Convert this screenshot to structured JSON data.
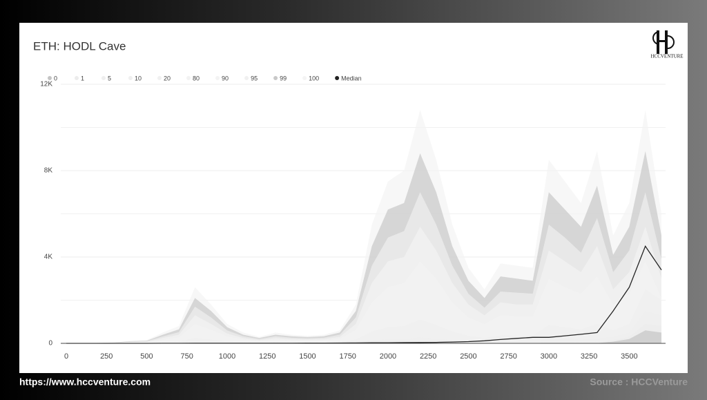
{
  "logo_text": "HCCVENTURE",
  "footer": {
    "url": "https://www.hccventure.com",
    "source": "Source : HCCVenture"
  },
  "chart_data": {
    "type": "area",
    "title": "ETH: HODL Cave",
    "x": [
      0,
      100,
      200,
      300,
      400,
      500,
      600,
      700,
      800,
      900,
      1000,
      1100,
      1200,
      1300,
      1400,
      1500,
      1600,
      1700,
      1800,
      1900,
      2000,
      2100,
      2200,
      2300,
      2400,
      2500,
      2600,
      2700,
      2800,
      2900,
      3000,
      3100,
      3200,
      3300,
      3400,
      3500,
      3600,
      3700
    ],
    "xlim": [
      0,
      3700
    ],
    "xticks": [
      0,
      250,
      500,
      750,
      1000,
      1250,
      1500,
      1750,
      2000,
      2250,
      2500,
      2750,
      3000,
      3250,
      3500
    ],
    "ylim": [
      0,
      12000
    ],
    "yticks": [
      {
        "value": 0,
        "label": "0"
      },
      {
        "value": 4000,
        "label": "4K"
      },
      {
        "value": 8000,
        "label": "8K"
      },
      {
        "value": 12000,
        "label": "12K"
      }
    ],
    "minor_yticks": [
      2000,
      6000,
      10000
    ],
    "grid": true,
    "legend": "top-left",
    "series": [
      {
        "name": "0",
        "color": "#c4c4c4",
        "values": [
          0,
          0,
          0,
          0,
          0,
          0,
          1,
          1,
          3,
          2,
          1,
          1,
          0,
          1,
          0,
          0,
          0,
          1,
          2,
          5,
          8,
          8,
          10,
          8,
          5,
          3,
          3,
          4,
          4,
          4,
          8,
          7,
          6,
          10,
          80,
          200,
          600,
          500
        ]
      },
      {
        "name": "1",
        "color": "#ececec",
        "values": [
          0,
          0,
          0,
          0,
          1,
          1,
          3,
          5,
          15,
          10,
          5,
          3,
          2,
          3,
          2,
          2,
          2,
          3,
          10,
          30,
          40,
          40,
          60,
          45,
          30,
          20,
          15,
          20,
          20,
          20,
          45,
          40,
          35,
          50,
          150,
          300,
          900,
          800
        ]
      },
      {
        "name": "5",
        "color": "#eeeeee",
        "values": [
          0,
          0,
          0,
          1,
          3,
          4,
          12,
          20,
          60,
          45,
          22,
          12,
          8,
          12,
          10,
          9,
          10,
          15,
          45,
          140,
          190,
          200,
          280,
          220,
          140,
          90,
          70,
          100,
          90,
          90,
          220,
          190,
          170,
          230,
          300,
          500,
          1500,
          1300
        ]
      },
      {
        "name": "10",
        "color": "#efefef",
        "values": [
          0,
          0,
          1,
          2,
          5,
          8,
          25,
          40,
          120,
          90,
          45,
          25,
          15,
          25,
          20,
          18,
          20,
          30,
          90,
          270,
          370,
          400,
          550,
          430,
          280,
          180,
          130,
          190,
          180,
          180,
          430,
          380,
          330,
          450,
          400,
          700,
          2000,
          1700
        ]
      },
      {
        "name": "20",
        "color": "#f0f0f0",
        "values": [
          0,
          0,
          2,
          5,
          10,
          15,
          50,
          80,
          250,
          180,
          90,
          50,
          30,
          50,
          40,
          35,
          40,
          60,
          180,
          550,
          750,
          800,
          1100,
          850,
          550,
          350,
          250,
          370,
          360,
          350,
          850,
          750,
          650,
          900,
          600,
          900,
          2500,
          2000
        ]
      },
      {
        "name": "80",
        "color": "#f2f2f2",
        "values": [
          0,
          0,
          7,
          18,
          40,
          50,
          170,
          280,
          900,
          630,
          320,
          180,
          100,
          180,
          140,
          120,
          140,
          210,
          630,
          1900,
          2600,
          2800,
          3800,
          3000,
          1900,
          1200,
          900,
          1300,
          1250,
          1250,
          3000,
          2600,
          2300,
          3100,
          1800,
          2300,
          3800,
          2100
        ]
      },
      {
        "name": "90",
        "color": "#f3f3f3",
        "values": [
          0,
          0,
          10,
          25,
          60,
          75,
          250,
          400,
          1300,
          900,
          450,
          250,
          150,
          250,
          200,
          180,
          200,
          300,
          900,
          2800,
          3800,
          4000,
          5400,
          4300,
          2800,
          1800,
          1300,
          1900,
          1800,
          1800,
          4300,
          3800,
          3300,
          4500,
          2500,
          3300,
          5400,
          3000
        ]
      },
      {
        "name": "95",
        "color": "#f0f0f0",
        "values": [
          0,
          0,
          12,
          30,
          80,
          100,
          320,
          520,
          1700,
          1200,
          600,
          330,
          200,
          330,
          260,
          230,
          260,
          400,
          1200,
          3600,
          4900,
          5200,
          7000,
          5500,
          3600,
          2300,
          1650,
          2400,
          2350,
          2300,
          5500,
          4900,
          4200,
          5800,
          3300,
          4300,
          7000,
          3900
        ]
      },
      {
        "name": "99",
        "color": "#c8c8c8",
        "values": [
          0,
          0,
          15,
          40,
          100,
          120,
          400,
          650,
          2100,
          1500,
          750,
          400,
          250,
          400,
          330,
          290,
          330,
          500,
          1500,
          4500,
          6200,
          6500,
          8800,
          7000,
          4500,
          2900,
          2100,
          3100,
          3000,
          2900,
          7000,
          6200,
          5400,
          7300,
          4100,
          5400,
          8900,
          5000
        ]
      },
      {
        "name": "100",
        "color": "#f4f4f4",
        "values": [
          0,
          0,
          20,
          50,
          120,
          150,
          500,
          800,
          2600,
          1800,
          900,
          500,
          300,
          500,
          400,
          350,
          400,
          600,
          1800,
          5500,
          7500,
          8000,
          10800,
          8500,
          5500,
          3500,
          2500,
          3700,
          3600,
          3500,
          8500,
          7500,
          6500,
          8900,
          5000,
          6500,
          10800,
          6000
        ]
      },
      {
        "name": "Median",
        "color": "#222222",
        "style": "line",
        "values": [
          0,
          0,
          0,
          1,
          1,
          1,
          2,
          2,
          5,
          5,
          5,
          5,
          5,
          6,
          8,
          10,
          12,
          15,
          20,
          25,
          30,
          35,
          40,
          45,
          60,
          80,
          120,
          180,
          230,
          280,
          280,
          350,
          420,
          500,
          1500,
          2600,
          4500,
          3400
        ]
      }
    ]
  }
}
